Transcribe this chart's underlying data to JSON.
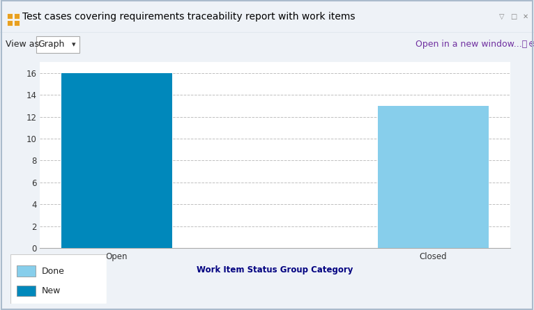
{
  "title": "Test cases covering requirements traceability report with work items",
  "categories": [
    "Open",
    "Closed"
  ],
  "values": [
    16,
    13
  ],
  "bar_colors": [
    "#0088BB",
    "#87CEEB"
  ],
  "xlabel": "Work Item Status Group Category",
  "ylim": [
    0,
    17
  ],
  "yticks": [
    0,
    2,
    4,
    6,
    8,
    10,
    12,
    14,
    16
  ],
  "legend_labels": [
    "Done",
    "New"
  ],
  "legend_colors": [
    "#87CEEB",
    "#0088BB"
  ],
  "bg_color": "#eef2f7",
  "plot_bg_color": "#ffffff",
  "header_bg_color": "#d8e6f2",
  "open_in_new_window_text": "Open in a new window...",
  "view_as_text": "View as:",
  "graph_text": "Graph",
  "title_color": "#000000",
  "link_color": "#7030A0",
  "axis_label_color": "#000080",
  "tick_label_color": "#333333",
  "grid_color": "#c0c0c0",
  "bar_width": 0.35,
  "icon_color": "#E8A020",
  "outer_border_color": "#aabbcc"
}
